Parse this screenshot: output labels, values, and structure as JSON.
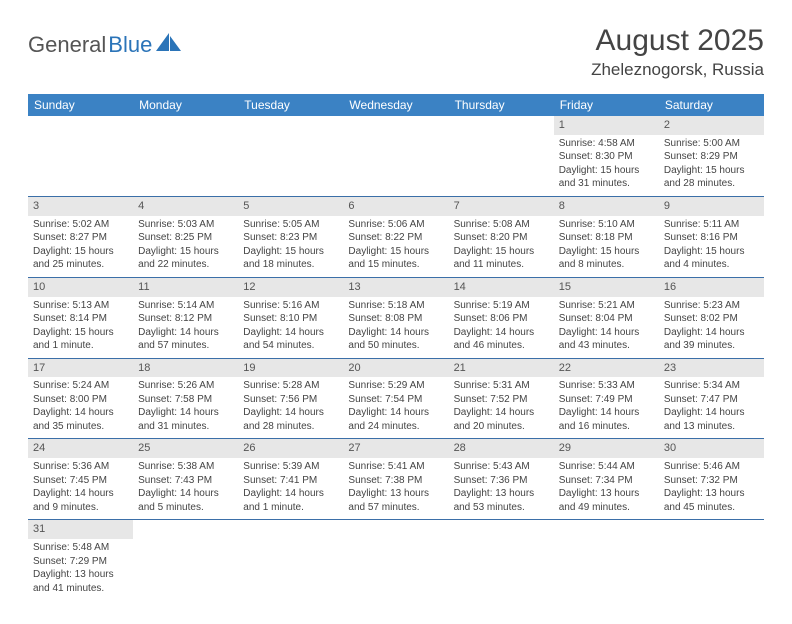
{
  "logo": {
    "dark": "General",
    "blue": "Blue"
  },
  "title": "August 2025",
  "subtitle": "Zheleznogorsk, Russia",
  "colors": {
    "header_bg": "#3b82c4",
    "header_text": "#ffffff",
    "daynum_bg": "#e7e7e7",
    "border": "#3b6fa8",
    "text": "#444444",
    "logo_blue": "#2b74b8"
  },
  "dayNames": [
    "Sunday",
    "Monday",
    "Tuesday",
    "Wednesday",
    "Thursday",
    "Friday",
    "Saturday"
  ],
  "weeks": [
    [
      null,
      null,
      null,
      null,
      null,
      {
        "n": "1",
        "sr": "Sunrise: 4:58 AM",
        "ss": "Sunset: 8:30 PM",
        "d1": "Daylight: 15 hours",
        "d2": "and 31 minutes."
      },
      {
        "n": "2",
        "sr": "Sunrise: 5:00 AM",
        "ss": "Sunset: 8:29 PM",
        "d1": "Daylight: 15 hours",
        "d2": "and 28 minutes."
      }
    ],
    [
      {
        "n": "3",
        "sr": "Sunrise: 5:02 AM",
        "ss": "Sunset: 8:27 PM",
        "d1": "Daylight: 15 hours",
        "d2": "and 25 minutes."
      },
      {
        "n": "4",
        "sr": "Sunrise: 5:03 AM",
        "ss": "Sunset: 8:25 PM",
        "d1": "Daylight: 15 hours",
        "d2": "and 22 minutes."
      },
      {
        "n": "5",
        "sr": "Sunrise: 5:05 AM",
        "ss": "Sunset: 8:23 PM",
        "d1": "Daylight: 15 hours",
        "d2": "and 18 minutes."
      },
      {
        "n": "6",
        "sr": "Sunrise: 5:06 AM",
        "ss": "Sunset: 8:22 PM",
        "d1": "Daylight: 15 hours",
        "d2": "and 15 minutes."
      },
      {
        "n": "7",
        "sr": "Sunrise: 5:08 AM",
        "ss": "Sunset: 8:20 PM",
        "d1": "Daylight: 15 hours",
        "d2": "and 11 minutes."
      },
      {
        "n": "8",
        "sr": "Sunrise: 5:10 AM",
        "ss": "Sunset: 8:18 PM",
        "d1": "Daylight: 15 hours",
        "d2": "and 8 minutes."
      },
      {
        "n": "9",
        "sr": "Sunrise: 5:11 AM",
        "ss": "Sunset: 8:16 PM",
        "d1": "Daylight: 15 hours",
        "d2": "and 4 minutes."
      }
    ],
    [
      {
        "n": "10",
        "sr": "Sunrise: 5:13 AM",
        "ss": "Sunset: 8:14 PM",
        "d1": "Daylight: 15 hours",
        "d2": "and 1 minute."
      },
      {
        "n": "11",
        "sr": "Sunrise: 5:14 AM",
        "ss": "Sunset: 8:12 PM",
        "d1": "Daylight: 14 hours",
        "d2": "and 57 minutes."
      },
      {
        "n": "12",
        "sr": "Sunrise: 5:16 AM",
        "ss": "Sunset: 8:10 PM",
        "d1": "Daylight: 14 hours",
        "d2": "and 54 minutes."
      },
      {
        "n": "13",
        "sr": "Sunrise: 5:18 AM",
        "ss": "Sunset: 8:08 PM",
        "d1": "Daylight: 14 hours",
        "d2": "and 50 minutes."
      },
      {
        "n": "14",
        "sr": "Sunrise: 5:19 AM",
        "ss": "Sunset: 8:06 PM",
        "d1": "Daylight: 14 hours",
        "d2": "and 46 minutes."
      },
      {
        "n": "15",
        "sr": "Sunrise: 5:21 AM",
        "ss": "Sunset: 8:04 PM",
        "d1": "Daylight: 14 hours",
        "d2": "and 43 minutes."
      },
      {
        "n": "16",
        "sr": "Sunrise: 5:23 AM",
        "ss": "Sunset: 8:02 PM",
        "d1": "Daylight: 14 hours",
        "d2": "and 39 minutes."
      }
    ],
    [
      {
        "n": "17",
        "sr": "Sunrise: 5:24 AM",
        "ss": "Sunset: 8:00 PM",
        "d1": "Daylight: 14 hours",
        "d2": "and 35 minutes."
      },
      {
        "n": "18",
        "sr": "Sunrise: 5:26 AM",
        "ss": "Sunset: 7:58 PM",
        "d1": "Daylight: 14 hours",
        "d2": "and 31 minutes."
      },
      {
        "n": "19",
        "sr": "Sunrise: 5:28 AM",
        "ss": "Sunset: 7:56 PM",
        "d1": "Daylight: 14 hours",
        "d2": "and 28 minutes."
      },
      {
        "n": "20",
        "sr": "Sunrise: 5:29 AM",
        "ss": "Sunset: 7:54 PM",
        "d1": "Daylight: 14 hours",
        "d2": "and 24 minutes."
      },
      {
        "n": "21",
        "sr": "Sunrise: 5:31 AM",
        "ss": "Sunset: 7:52 PM",
        "d1": "Daylight: 14 hours",
        "d2": "and 20 minutes."
      },
      {
        "n": "22",
        "sr": "Sunrise: 5:33 AM",
        "ss": "Sunset: 7:49 PM",
        "d1": "Daylight: 14 hours",
        "d2": "and 16 minutes."
      },
      {
        "n": "23",
        "sr": "Sunrise: 5:34 AM",
        "ss": "Sunset: 7:47 PM",
        "d1": "Daylight: 14 hours",
        "d2": "and 13 minutes."
      }
    ],
    [
      {
        "n": "24",
        "sr": "Sunrise: 5:36 AM",
        "ss": "Sunset: 7:45 PM",
        "d1": "Daylight: 14 hours",
        "d2": "and 9 minutes."
      },
      {
        "n": "25",
        "sr": "Sunrise: 5:38 AM",
        "ss": "Sunset: 7:43 PM",
        "d1": "Daylight: 14 hours",
        "d2": "and 5 minutes."
      },
      {
        "n": "26",
        "sr": "Sunrise: 5:39 AM",
        "ss": "Sunset: 7:41 PM",
        "d1": "Daylight: 14 hours",
        "d2": "and 1 minute."
      },
      {
        "n": "27",
        "sr": "Sunrise: 5:41 AM",
        "ss": "Sunset: 7:38 PM",
        "d1": "Daylight: 13 hours",
        "d2": "and 57 minutes."
      },
      {
        "n": "28",
        "sr": "Sunrise: 5:43 AM",
        "ss": "Sunset: 7:36 PM",
        "d1": "Daylight: 13 hours",
        "d2": "and 53 minutes."
      },
      {
        "n": "29",
        "sr": "Sunrise: 5:44 AM",
        "ss": "Sunset: 7:34 PM",
        "d1": "Daylight: 13 hours",
        "d2": "and 49 minutes."
      },
      {
        "n": "30",
        "sr": "Sunrise: 5:46 AM",
        "ss": "Sunset: 7:32 PM",
        "d1": "Daylight: 13 hours",
        "d2": "and 45 minutes."
      }
    ],
    [
      {
        "n": "31",
        "sr": "Sunrise: 5:48 AM",
        "ss": "Sunset: 7:29 PM",
        "d1": "Daylight: 13 hours",
        "d2": "and 41 minutes."
      },
      null,
      null,
      null,
      null,
      null,
      null
    ]
  ]
}
